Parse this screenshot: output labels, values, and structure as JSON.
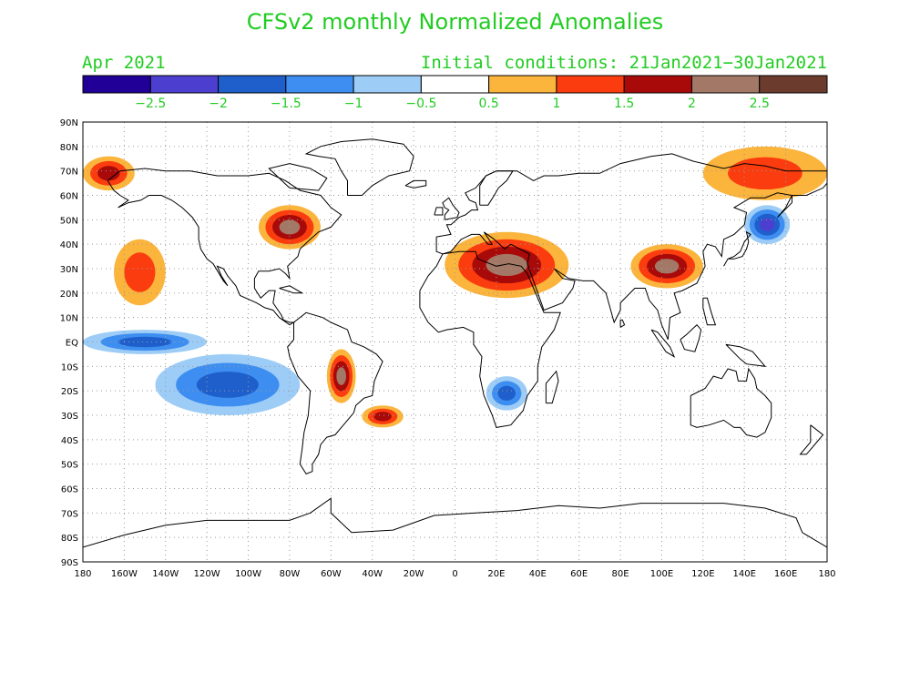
{
  "header": {
    "title": "CFSv2 monthly Normalized Anomalies",
    "valid_month": "Apr 2021",
    "initial_conditions": "Initial conditions: 21Jan2021−30Jan2021"
  },
  "colorbar": {
    "colors": [
      "#200096",
      "#4c3fd0",
      "#1e5fcc",
      "#3d8ef0",
      "#9dcdf7",
      "#ffffff",
      "#fbb43c",
      "#fb3c0e",
      "#a80a0a",
      "#a37866",
      "#6b3c2e"
    ],
    "labels": [
      "−2.5",
      "−2",
      "−1.5",
      "−1",
      "−0.5",
      "0.5",
      "1",
      "1.5",
      "2",
      "2.5"
    ]
  },
  "axes": {
    "lat_labels": [
      "90N",
      "80N",
      "70N",
      "60N",
      "50N",
      "40N",
      "30N",
      "20N",
      "10N",
      "EQ",
      "10S",
      "20S",
      "30S",
      "40S",
      "50S",
      "60S",
      "70S",
      "80S",
      "90S"
    ],
    "lon_labels": [
      "180",
      "160W",
      "140W",
      "120W",
      "100W",
      "80W",
      "60W",
      "40W",
      "20W",
      "0",
      "20E",
      "40E",
      "60E",
      "80E",
      "100E",
      "120E",
      "140E",
      "160E",
      "180"
    ]
  },
  "anomaly_regions": [
    {
      "label": "Siberia / Arctic warm",
      "lon": [
        120,
        180
      ],
      "lat": [
        58,
        80
      ],
      "level": 1
    },
    {
      "label": "Arctic Canada warm",
      "lon": [
        -180,
        -155
      ],
      "lat": [
        62,
        76
      ],
      "level": 1.5
    },
    {
      "label": "Great Lakes / NE US warm",
      "lon": [
        -95,
        -65
      ],
      "lat": [
        38,
        56
      ],
      "level": 2
    },
    {
      "label": "Mediterranean-Middle East warm",
      "lon": [
        -5,
        55
      ],
      "lat": [
        18,
        45
      ],
      "level": 2
    },
    {
      "label": "Tibet / China warm",
      "lon": [
        85,
        120
      ],
      "lat": [
        22,
        40
      ],
      "level": 2
    },
    {
      "label": "Bolivia / Amazon warm",
      "lon": [
        -62,
        -48
      ],
      "lat": [
        -25,
        -3
      ],
      "level": 2
    },
    {
      "label": "South Atlantic warm",
      "lon": [
        -45,
        -25
      ],
      "lat": [
        -35,
        -26
      ],
      "level": 1.5
    },
    {
      "label": "NE Pacific warm",
      "lon": [
        -165,
        -140
      ],
      "lat": [
        15,
        42
      ],
      "level": 1
    },
    {
      "label": "SE Pacific cold",
      "lon": [
        -145,
        -75
      ],
      "lat": [
        -30,
        -5
      ],
      "level": -1.5
    },
    {
      "label": "Equatorial Pacific cold",
      "lon": [
        -180,
        -120
      ],
      "lat": [
        -5,
        5
      ],
      "level": -1.5
    },
    {
      "label": "Japan / Kuril cold",
      "lon": [
        140,
        162
      ],
      "lat": [
        40,
        56
      ],
      "level": -2
    },
    {
      "label": "Southern Africa cold",
      "lon": [
        15,
        35
      ],
      "lat": [
        -28,
        -14
      ],
      "level": -1.5
    }
  ]
}
